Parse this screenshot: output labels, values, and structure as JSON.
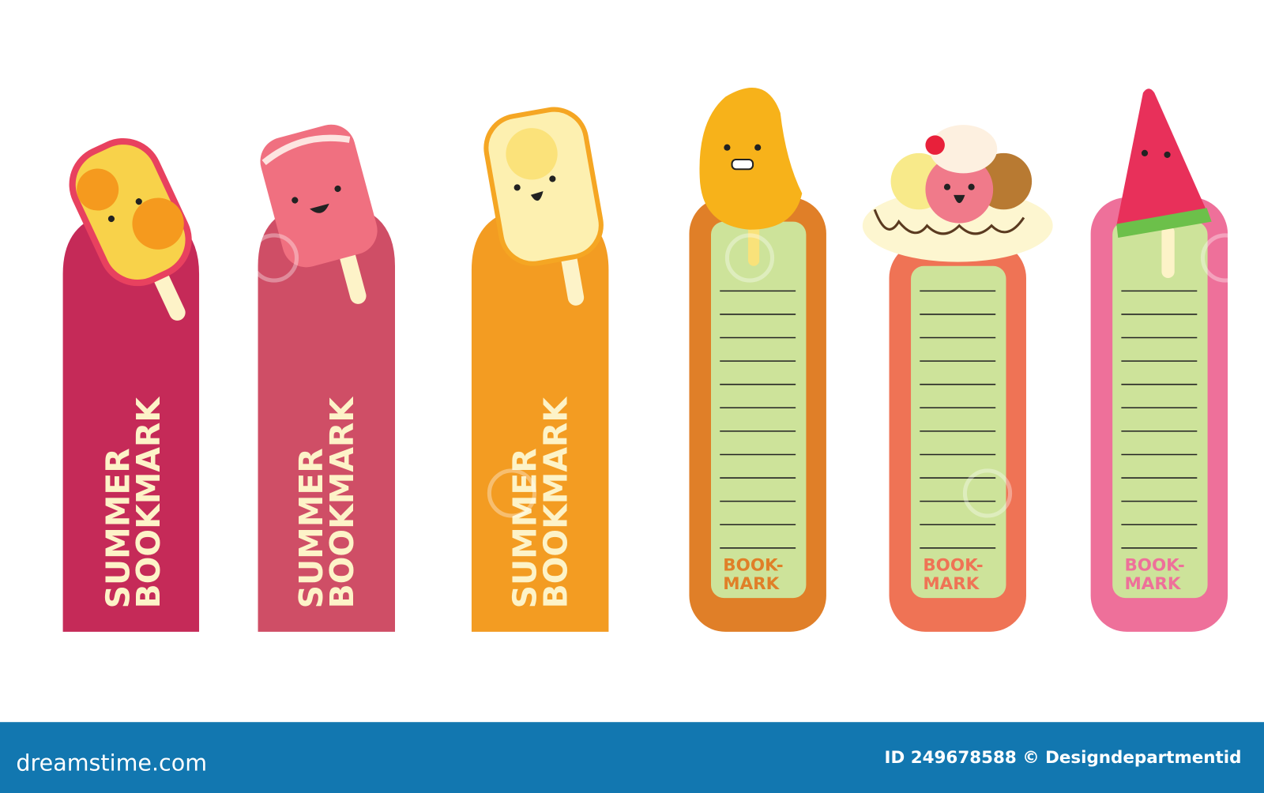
{
  "colors": {
    "bookmark1": "#c52a58",
    "bookmark2": "#cf4e66",
    "bookmark3": "#f39c22",
    "bookmark4": "#e07f28",
    "bookmark5": "#ef7355",
    "bookmark6": "#ee709a",
    "lined_panel": "#cde39a",
    "text_cream": "#fdf3c8",
    "footer": "#1277b0"
  },
  "bookmarks_plain": [
    {
      "treat": "orange-popsicle",
      "line1": "SUMMER",
      "line2": "BOOKMARK"
    },
    {
      "treat": "strawberry-popsicle",
      "line1": "SUMMER",
      "line2": "BOOKMARK"
    },
    {
      "treat": "lemon-popsicle",
      "line1": "SUMMER",
      "line2": "BOOKMARK"
    }
  ],
  "bookmarks_lined": [
    {
      "treat": "mango-popsicle",
      "line1": "BOOK-",
      "line2": "MARK",
      "ruled_lines": 12
    },
    {
      "treat": "banana-split",
      "line1": "BOOK-",
      "line2": "MARK",
      "ruled_lines": 12
    },
    {
      "treat": "watermelon-popsicle",
      "line1": "BOOK-",
      "line2": "MARK",
      "ruled_lines": 12
    }
  ],
  "footer": {
    "logo": "dreamstime.com",
    "credit": "ID 249678588 © Designdepartmentid"
  }
}
